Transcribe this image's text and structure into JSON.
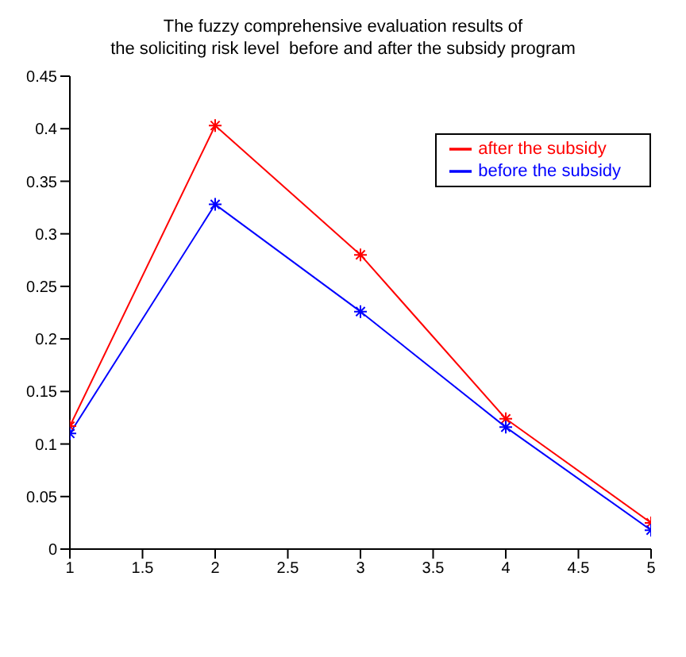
{
  "chart_data": {
    "type": "line",
    "title": "The fuzzy comprehensive evaluation results of\nthe soliciting risk level  before and after the subsidy program",
    "x": [
      1,
      2,
      3,
      4,
      5
    ],
    "series": [
      {
        "name": "after the subsidy",
        "color": "#ff0000",
        "values": [
          0.117,
          0.403,
          0.28,
          0.124,
          0.025
        ]
      },
      {
        "name": "before the subsidy",
        "color": "#0000ff",
        "values": [
          0.11,
          0.328,
          0.226,
          0.116,
          0.018
        ]
      }
    ],
    "xlim": [
      1,
      5
    ],
    "xticks": [
      1,
      1.5,
      2,
      2.5,
      3,
      3.5,
      4,
      4.5,
      5
    ],
    "ylim": [
      0,
      0.45
    ],
    "yticks": [
      0,
      0.05,
      0.1,
      0.15,
      0.2,
      0.25,
      0.3,
      0.35,
      0.4,
      0.45
    ],
    "grid": false,
    "legend": "top right",
    "marker": "cross",
    "line_style": "solid"
  }
}
